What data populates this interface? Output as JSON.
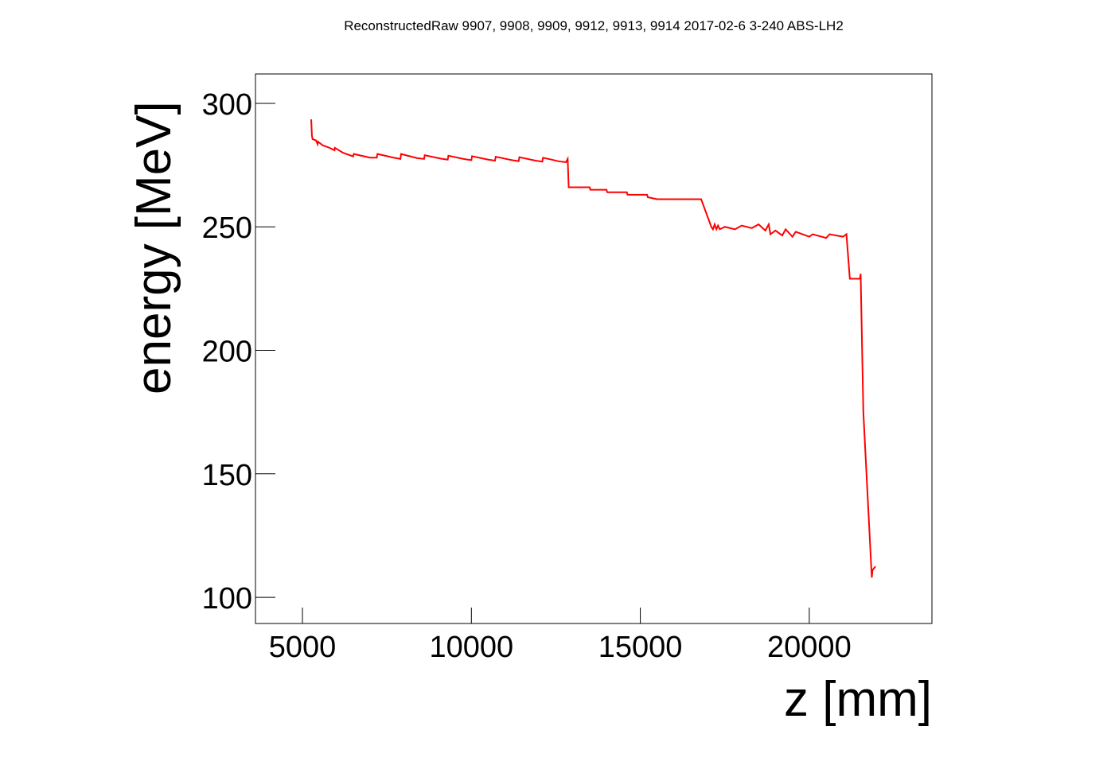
{
  "chart_data": {
    "type": "line",
    "title": "ReconstructedRaw 9907, 9908, 9909, 9912, 9913, 9914 2017-02-6 3-240 ABS-LH2",
    "x_label": "z [mm]",
    "y_label": "energy [MeV]",
    "xlim": [
      3610,
      23630
    ],
    "ylim": [
      89.4,
      311.9
    ],
    "xticks": [
      5000,
      10000,
      15000,
      20000
    ],
    "yticks": [
      100,
      150,
      200,
      250,
      300
    ],
    "series": [
      {
        "color": "#ff0000",
        "x": [
          5260,
          5280,
          5300,
          5400,
          5450,
          5460,
          5600,
          5800,
          5950,
          5960,
          6200,
          6500,
          6520,
          7000,
          7200,
          7220,
          7700,
          7900,
          7920,
          8400,
          8600,
          8620,
          9100,
          9300,
          9320,
          9800,
          10000,
          10020,
          10500,
          10700,
          10720,
          11200,
          11400,
          11420,
          11900,
          12100,
          12120,
          12600,
          12800,
          12850,
          12880,
          13500,
          13520,
          14000,
          14020,
          14600,
          14620,
          15200,
          15220,
          15500,
          16800,
          17100,
          17150,
          17200,
          17250,
          17300,
          17350,
          17500,
          17800,
          18000,
          18300,
          18500,
          18700,
          18800,
          18850,
          19000,
          19200,
          19300,
          19500,
          19600,
          20000,
          20100,
          20500,
          20600,
          21000,
          21100,
          21200,
          21250,
          21500,
          21520,
          21600,
          21850,
          21870,
          21960
        ],
        "values": [
          293.5,
          287,
          285.5,
          285,
          283.5,
          284.5,
          283,
          282,
          281,
          282,
          280,
          278.5,
          279.5,
          278,
          278,
          279.5,
          278,
          277.5,
          279.5,
          277.8,
          277.5,
          279,
          277.6,
          277.2,
          278.8,
          277.4,
          277,
          278.6,
          277.2,
          276.8,
          278.4,
          277,
          276.6,
          278.2,
          276.8,
          276.4,
          278,
          276.5,
          276.2,
          277.5,
          266,
          266,
          265,
          265,
          264,
          264,
          263,
          263,
          262,
          261.2,
          261.2,
          250,
          249,
          251,
          249,
          250.5,
          249,
          250,
          249,
          250.5,
          249.5,
          251,
          248.5,
          251,
          247,
          248.5,
          246.5,
          249,
          246,
          248,
          246,
          247,
          245.5,
          247,
          246,
          247,
          229,
          229,
          229,
          231,
          175,
          108,
          111,
          112.5
        ]
      }
    ]
  }
}
